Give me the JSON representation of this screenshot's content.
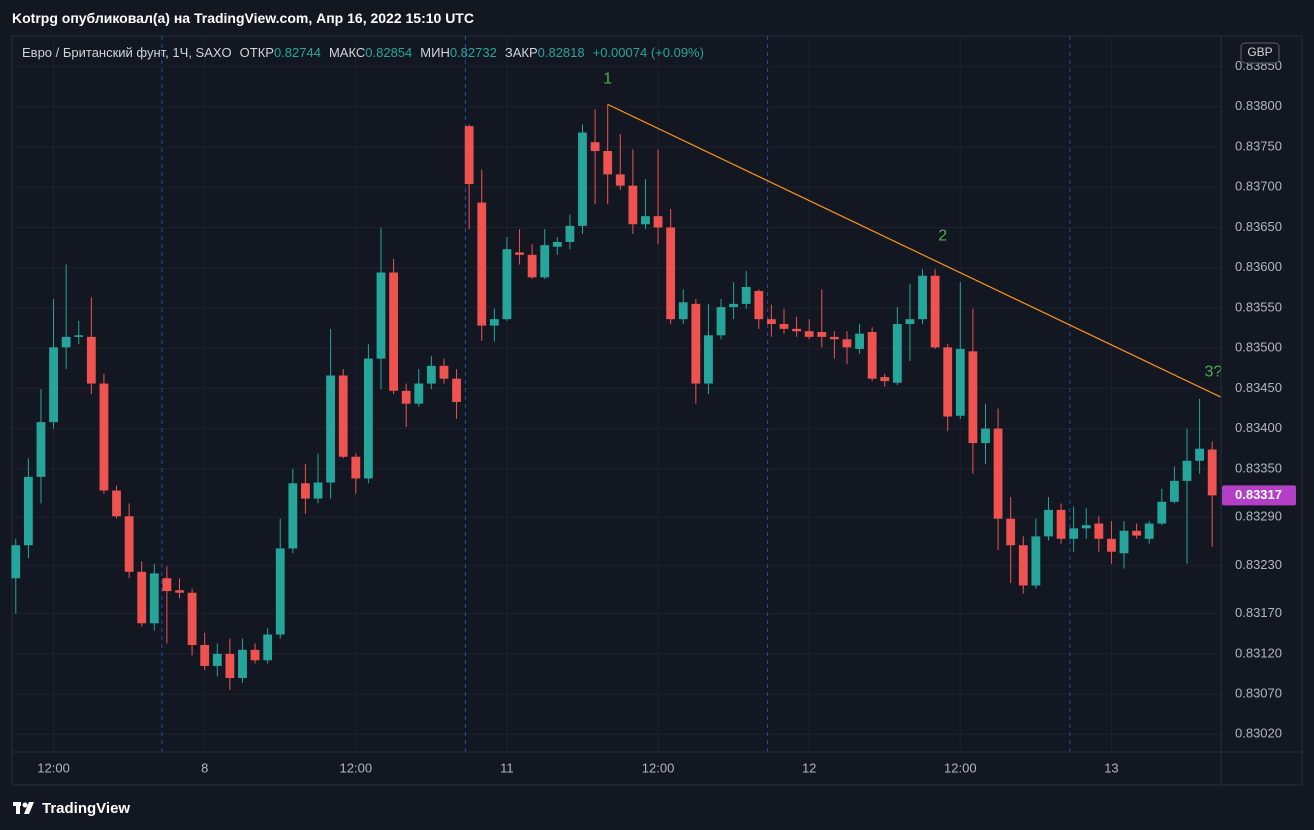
{
  "header": {
    "title": "Kotrpg опубликовал(а) на TradingView.com, Апр 16, 2022 15:10 UTC"
  },
  "chart_data": {
    "type": "candlestick",
    "symbol": "Евро / Британский фунт, 1Ч, SAXO",
    "legend_fields": [
      {
        "label": "ОТКР",
        "value": 0.82744
      },
      {
        "label": "МАКС",
        "value": 0.82854
      },
      {
        "label": "МИН",
        "value": 0.82732
      },
      {
        "label": "ЗАКР",
        "value": 0.82818
      }
    ],
    "change": "+0.00074 (+0.09%)",
    "currency": "GBP",
    "x": [
      0,
      1,
      2,
      3,
      4,
      5,
      6,
      7,
      8,
      9,
      10,
      11,
      12,
      13,
      14,
      15,
      16,
      17,
      18,
      19,
      20,
      21,
      22,
      23,
      24,
      25,
      26,
      27,
      28,
      29,
      30,
      31,
      32,
      33,
      34,
      35,
      36,
      37,
      38,
      39,
      40,
      41,
      42,
      43,
      44,
      45,
      46,
      47,
      48,
      49,
      50,
      51,
      52,
      53,
      54,
      55,
      56,
      57,
      58,
      59,
      60,
      61,
      62,
      63,
      64,
      65,
      66,
      67,
      68,
      69,
      70,
      71,
      72,
      73,
      74,
      75,
      76,
      77,
      78,
      79,
      80,
      81,
      82,
      83,
      84,
      85,
      86,
      87,
      88,
      89,
      90,
      91,
      92,
      93,
      94,
      95
    ],
    "open": [
      0.83214,
      0.83255,
      0.8334,
      0.83408,
      0.83501,
      0.83514,
      0.83514,
      0.83456,
      0.83323,
      0.83291,
      0.83222,
      0.83158,
      0.83214,
      0.83199,
      0.83196,
      0.83131,
      0.83105,
      0.8312,
      0.8309,
      0.83125,
      0.83112,
      0.83144,
      0.83251,
      0.83332,
      0.83313,
      0.83333,
      0.83466,
      0.83365,
      0.83338,
      0.83487,
      0.83594,
      0.83447,
      0.83431,
      0.83456,
      0.83478,
      0.83462,
      0.83776,
      0.83681,
      0.83528,
      0.83536,
      0.83619,
      0.83616,
      0.83588,
      0.83626,
      0.83632,
      0.83652,
      0.83756,
      0.83745,
      0.83716,
      0.83702,
      0.83654,
      0.83664,
      0.8365,
      0.83536,
      0.83555,
      0.83456,
      0.83516,
      0.83551,
      0.83555,
      0.83571,
      0.83536,
      0.8353,
      0.83524,
      0.83521,
      0.8352,
      0.83514,
      0.83511,
      0.83499,
      0.8352,
      0.83464,
      0.83457,
      0.8353,
      0.83536,
      0.8359,
      0.83501,
      0.83416,
      0.83496,
      0.83382,
      0.834,
      0.83288,
      0.83255,
      0.83205,
      0.83266,
      0.83299,
      0.83263,
      0.83276,
      0.83282,
      0.83263,
      0.83245,
      0.83273,
      0.83263,
      0.83282,
      0.83309,
      0.83335,
      0.8336,
      0.83374
    ],
    "high": [
      0.83263,
      0.83363,
      0.83449,
      0.83561,
      0.83604,
      0.83534,
      0.83563,
      0.83468,
      0.83329,
      0.83307,
      0.83235,
      0.83232,
      0.83229,
      0.83214,
      0.83201,
      0.83146,
      0.83133,
      0.83139,
      0.83139,
      0.83133,
      0.83152,
      0.83288,
      0.8335,
      0.83356,
      0.83369,
      0.83524,
      0.83474,
      0.83369,
      0.83505,
      0.8365,
      0.83611,
      0.83456,
      0.83474,
      0.8349,
      0.83487,
      0.83474,
      0.83778,
      0.83722,
      0.83549,
      0.83638,
      0.83648,
      0.83629,
      0.83648,
      0.83638,
      0.83666,
      0.83778,
      0.83797,
      0.83803,
      0.83766,
      0.83747,
      0.8371,
      0.83747,
      0.83673,
      0.83573,
      0.83561,
      0.83555,
      0.83561,
      0.83582,
      0.83596,
      0.83573,
      0.83554,
      0.83549,
      0.83539,
      0.83536,
      0.83573,
      0.83521,
      0.83521,
      0.8353,
      0.83526,
      0.83468,
      0.83551,
      0.8358,
      0.83598,
      0.83598,
      0.83505,
      0.83582,
      0.83549,
      0.83431,
      0.83425,
      0.83315,
      0.83266,
      0.83288,
      0.83315,
      0.83307,
      0.83303,
      0.83301,
      0.83291,
      0.83285,
      0.83285,
      0.83282,
      0.83285,
      0.83325,
      0.83353,
      0.834,
      0.83437,
      0.83384
    ],
    "low": [
      0.8317,
      0.83239,
      0.83307,
      0.834,
      0.83474,
      0.83505,
      0.83443,
      0.83319,
      0.83288,
      0.83214,
      0.83154,
      0.83149,
      0.83133,
      0.83189,
      0.83118,
      0.831,
      0.83092,
      0.83075,
      0.83084,
      0.83108,
      0.83108,
      0.83139,
      0.83245,
      0.83294,
      0.83307,
      0.83313,
      0.83363,
      0.83319,
      0.83332,
      0.83449,
      0.83443,
      0.83402,
      0.83427,
      0.83449,
      0.83456,
      0.83412,
      0.83648,
      0.83509,
      0.83508,
      0.83534,
      0.83604,
      0.83586,
      0.83586,
      0.83616,
      0.83623,
      0.83642,
      0.83679,
      0.83679,
      0.83697,
      0.83642,
      0.83648,
      0.83629,
      0.8353,
      0.8353,
      0.83431,
      0.83443,
      0.83511,
      0.83536,
      0.83549,
      0.83524,
      0.83514,
      0.83518,
      0.83514,
      0.83511,
      0.83501,
      0.83487,
      0.8348,
      0.83493,
      0.83459,
      0.83452,
      0.83454,
      0.83484,
      0.8353,
      0.83499,
      0.83397,
      0.83412,
      0.83344,
      0.83356,
      0.83249,
      0.83208,
      0.83195,
      0.83201,
      0.83261,
      0.83257,
      0.83247,
      0.83263,
      0.83247,
      0.83232,
      0.83226,
      0.83263,
      0.83257,
      0.8328,
      0.83307,
      0.83232,
      0.83344,
      0.83253
    ],
    "close": [
      0.83255,
      0.8334,
      0.83408,
      0.83501,
      0.83514,
      0.83516,
      0.83456,
      0.83323,
      0.83291,
      0.83222,
      0.83158,
      0.8322,
      0.83198,
      0.83196,
      0.83131,
      0.83105,
      0.8312,
      0.8309,
      0.83125,
      0.83112,
      0.83144,
      0.83251,
      0.83332,
      0.83313,
      0.83333,
      0.83466,
      0.83365,
      0.83338,
      0.83487,
      0.83594,
      0.83447,
      0.83431,
      0.83456,
      0.83478,
      0.83462,
      0.83433,
      0.83704,
      0.83528,
      0.83536,
      0.83623,
      0.83616,
      0.83588,
      0.83628,
      0.83632,
      0.83652,
      0.83768,
      0.83745,
      0.83716,
      0.83702,
      0.83654,
      0.83664,
      0.8365,
      0.83536,
      0.83557,
      0.83456,
      0.83516,
      0.83551,
      0.83555,
      0.83576,
      0.83536,
      0.8353,
      0.83524,
      0.83521,
      0.83514,
      0.83514,
      0.83511,
      0.83501,
      0.83518,
      0.83462,
      0.83459,
      0.8353,
      0.83536,
      0.8359,
      0.83501,
      0.83415,
      0.83499,
      0.83382,
      0.834,
      0.83288,
      0.83255,
      0.83205,
      0.83266,
      0.83299,
      0.83263,
      0.83276,
      0.8328,
      0.83263,
      0.83247,
      0.83273,
      0.83267,
      0.83282,
      0.83309,
      0.83335,
      0.8336,
      0.83375,
      0.83317
    ],
    "up_color": "#26a69a",
    "down_color": "#ef5350",
    "xlim": [
      -0.3,
      95.7
    ],
    "xticks": [
      {
        "value": 3,
        "label": "12:00"
      },
      {
        "value": 15,
        "label": "8"
      },
      {
        "value": 27,
        "label": "12:00"
      },
      {
        "value": 39,
        "label": "11"
      },
      {
        "value": 51,
        "label": "12:00"
      },
      {
        "value": 63,
        "label": "12"
      },
      {
        "value": 75,
        "label": "12:00"
      },
      {
        "value": 87,
        "label": "13"
      }
    ],
    "ylim": [
      0.82998,
      0.83888
    ],
    "yticks": [
      {
        "value": 0.8385,
        "label": "0.83850"
      },
      {
        "value": 0.838,
        "label": "0.83800"
      },
      {
        "value": 0.8375,
        "label": "0.83750"
      },
      {
        "value": 0.837,
        "label": "0.83700"
      },
      {
        "value": 0.8365,
        "label": "0.83650"
      },
      {
        "value": 0.836,
        "label": "0.83600"
      },
      {
        "value": 0.8355,
        "label": "0.83550"
      },
      {
        "value": 0.835,
        "label": "0.83500"
      },
      {
        "value": 0.8345,
        "label": "0.83450"
      },
      {
        "value": 0.834,
        "label": "0.83400"
      },
      {
        "value": 0.8335,
        "label": "0.83350"
      },
      {
        "value": 0.8329,
        "label": "0.83290"
      },
      {
        "value": 0.8323,
        "label": "0.83230"
      },
      {
        "value": 0.8317,
        "label": "0.83170"
      },
      {
        "value": 0.8312,
        "label": "0.83120"
      },
      {
        "value": 0.8307,
        "label": "0.83070"
      },
      {
        "value": 0.8302,
        "label": "0.83020"
      }
    ],
    "grid": true,
    "session_breaks": [
      11.6,
      35.7,
      59.7,
      83.7
    ],
    "last_price": 0.83317,
    "last_price_color": "#b23fc6",
    "trend_line": {
      "x": [
        47,
        95.7
      ],
      "y": [
        0.83803,
        0.83439
      ],
      "color": "#f7931a"
    },
    "annotations": [
      {
        "text": "1",
        "x": 47,
        "y": 0.83834,
        "color": "#4caf50"
      },
      {
        "text": "2",
        "x": 73.6,
        "y": 0.83639,
        "color": "#4caf50"
      },
      {
        "text": "3?",
        "x": 95.1,
        "y": 0.8347,
        "color": "#4caf50"
      }
    ]
  },
  "footer": {
    "brand": "TradingView"
  }
}
